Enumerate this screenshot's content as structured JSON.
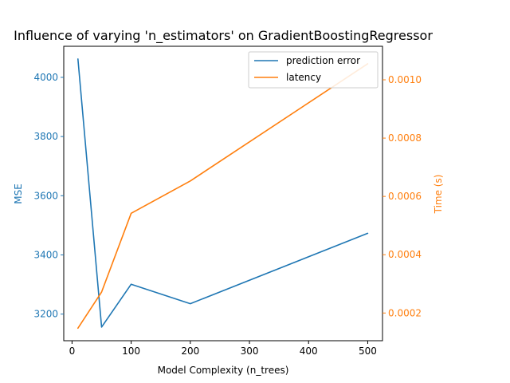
{
  "chart_data": {
    "type": "line",
    "title": "Influence of varying 'n_estimators' on GradientBoostingRegressor",
    "xlabel": "Model Complexity (n_trees)",
    "ylabel_left": "MSE",
    "ylabel_right": "Time (s)",
    "x": [
      10,
      50,
      100,
      200,
      500
    ],
    "xlim": [
      -14,
      525
    ],
    "ylim_left": [
      3110,
      4105
    ],
    "ylim_right": [
      0.000105,
      0.001115
    ],
    "xticks": [
      0,
      100,
      200,
      300,
      400,
      500
    ],
    "xtick_labels": [
      "0",
      "100",
      "200",
      "300",
      "400",
      "500"
    ],
    "yticks_left": [
      3200,
      3400,
      3600,
      3800,
      4000
    ],
    "ytick_labels_left": [
      "3200",
      "3400",
      "3600",
      "3800",
      "4000"
    ],
    "yticks_right": [
      0.0002,
      0.0004,
      0.0006,
      0.0008,
      0.001
    ],
    "ytick_labels_right": [
      "0.0002",
      "0.0004",
      "0.0006",
      "0.0008",
      "0.0010"
    ],
    "series": [
      {
        "name": "prediction error",
        "axis": "left",
        "color": "#1f77b4",
        "values": [
          4062,
          3156,
          3301,
          3235,
          3473
        ]
      },
      {
        "name": "latency",
        "axis": "right",
        "color": "#ff7f0e",
        "values": [
          0.000148,
          0.000272,
          0.000542,
          0.000653,
          0.001055
        ]
      }
    ],
    "legend": {
      "position": "top-right"
    },
    "grid": false
  }
}
